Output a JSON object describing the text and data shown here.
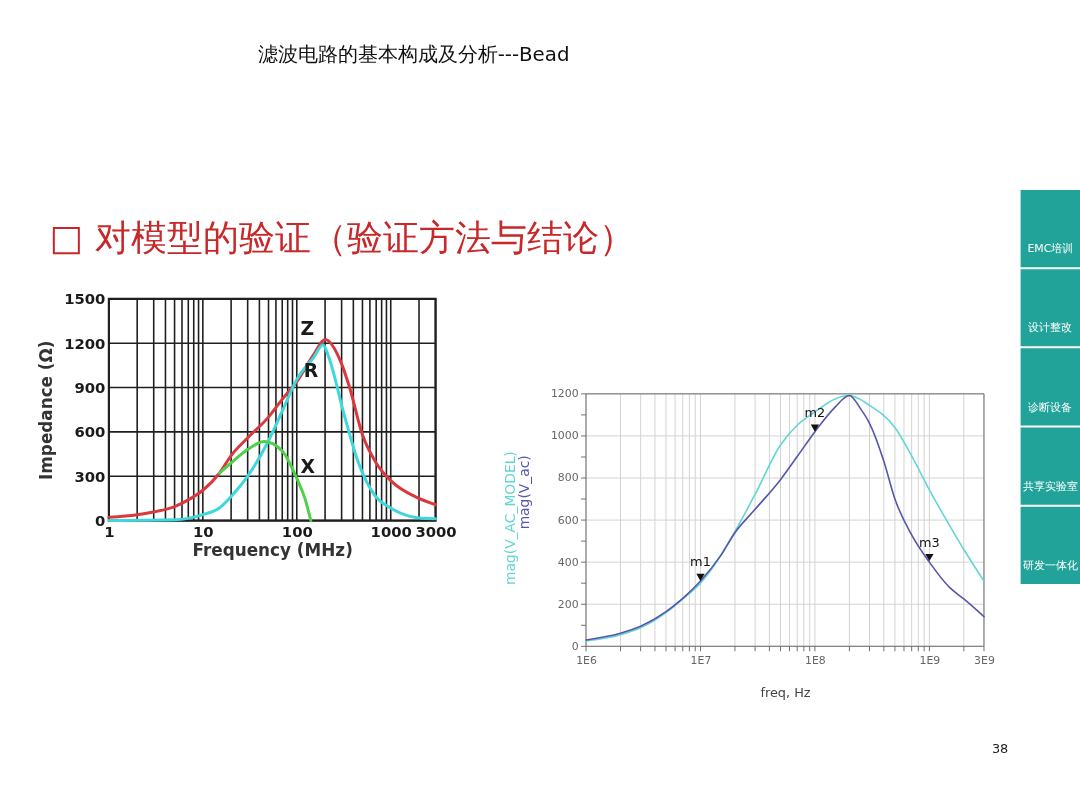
{
  "chart_data": [
    {
      "type": "line",
      "title": "滤波电路的基本构成及分析---Bead",
      "subtitle": "□ 对模型的验证（验证方法与结论）",
      "xlabel": "Frequency (MHz)",
      "ylabel": "Impedance (Ω)",
      "log": "x",
      "grid": true,
      "xlim": [
        1,
        3000
      ],
      "xticks": [
        1,
        {
          "value": 2,
          "label": null
        },
        {
          "value": 3,
          "label": null
        },
        {
          "value": 4,
          "label": null
        },
        {
          "value": 5,
          "label": null
        },
        {
          "value": 6,
          "label": null
        },
        {
          "value": 7,
          "label": null
        },
        {
          "value": 8,
          "label": null
        },
        {
          "value": 9,
          "label": null
        },
        10,
        {
          "value": 20,
          "label": null
        },
        {
          "value": 30,
          "label": null
        },
        {
          "value": 40,
          "label": null
        },
        {
          "value": 50,
          "label": null
        },
        {
          "value": 60,
          "label": null
        },
        {
          "value": 70,
          "label": null
        },
        {
          "value": 80,
          "label": null
        },
        {
          "value": 90,
          "label": null
        },
        100,
        {
          "value": 200,
          "label": null
        },
        {
          "value": 300,
          "label": null
        },
        {
          "value": 400,
          "label": null
        },
        {
          "value": 500,
          "label": null
        },
        {
          "value": 600,
          "label": null
        },
        {
          "value": 700,
          "label": null
        },
        {
          "value": 800,
          "label": null
        },
        {
          "value": 900,
          "label": null
        },
        1000,
        {
          "value": 2000,
          "label": null
        },
        3000
      ],
      "ylim": [
        0,
        1500
      ],
      "yticks": [
        0,
        300,
        600,
        900,
        1200,
        1500
      ],
      "series": [
        {
          "name": "Z",
          "color": "#d9383c",
          "x": [
            1,
            2,
            3,
            5,
            7,
            10,
            15,
            20,
            30,
            50,
            70,
            100,
            150,
            200,
            300,
            365,
            500,
            700,
            1000,
            2000,
            3000
          ],
          "values": [
            22,
            40,
            58,
            95,
            140,
            205,
            320,
            440,
            560,
            700,
            820,
            940,
            1120,
            1225,
            1060,
            900,
            580,
            390,
            270,
            150,
            107
          ]
        },
        {
          "name": "R",
          "color": "#3ed8dc",
          "x": [
            1,
            5,
            10,
            15,
            20,
            30,
            50,
            70,
            100,
            150,
            190,
            215,
            320,
            450,
            670,
            1000,
            2000,
            3000
          ],
          "values": [
            0,
            5,
            40,
            85,
            163,
            300,
            540,
            740,
            955,
            1100,
            1190,
            1120,
            713,
            396,
            174,
            85,
            18,
            13
          ]
        },
        {
          "name": "X",
          "color": "#4fd04a",
          "x": [
            15,
            20,
            30,
            45,
            70,
            100,
            122,
            141
          ],
          "values": [
            320,
            390,
            480,
            535,
            470,
            285,
            150,
            0
          ]
        }
      ]
    },
    {
      "type": "line",
      "xlabel": "freq, Hz",
      "log": "x",
      "grid": true,
      "xlim": [
        1000000,
        3000000000
      ],
      "xticks": [
        {
          "value": 1000000,
          "label": "1E6"
        },
        {
          "value": 2000000,
          "label": null
        },
        {
          "value": 3000000,
          "label": null
        },
        {
          "value": 4000000,
          "label": null
        },
        {
          "value": 5000000,
          "label": null
        },
        {
          "value": 6000000,
          "label": null
        },
        {
          "value": 7000000,
          "label": null
        },
        {
          "value": 8000000,
          "label": null
        },
        {
          "value": 9000000,
          "label": null
        },
        {
          "value": 10000000,
          "label": "1E7"
        },
        {
          "value": 20000000,
          "label": null
        },
        {
          "value": 30000000,
          "label": null
        },
        {
          "value": 40000000,
          "label": null
        },
        {
          "value": 50000000,
          "label": null
        },
        {
          "value": 60000000,
          "label": null
        },
        {
          "value": 70000000,
          "label": null
        },
        {
          "value": 80000000,
          "label": null
        },
        {
          "value": 90000000,
          "label": null
        },
        {
          "value": 100000000,
          "label": "1E8"
        },
        {
          "value": 200000000,
          "label": null
        },
        {
          "value": 300000000,
          "label": null
        },
        {
          "value": 400000000,
          "label": null
        },
        {
          "value": 500000000,
          "label": null
        },
        {
          "value": 600000000,
          "label": null
        },
        {
          "value": 700000000,
          "label": null
        },
        {
          "value": 800000000,
          "label": null
        },
        {
          "value": 900000000,
          "label": null
        },
        {
          "value": 1000000000,
          "label": "1E9"
        },
        {
          "value": 2000000000,
          "label": null
        },
        {
          "value": 3000000000,
          "label": "3E9"
        }
      ],
      "ylim": [
        0,
        1200
      ],
      "yticks": [
        0,
        {
          "value": 100,
          "label": null
        },
        200,
        {
          "value": 300,
          "label": null
        },
        400,
        {
          "value": 500,
          "label": null
        },
        600,
        {
          "value": 700,
          "label": null
        },
        800,
        {
          "value": 900,
          "label": null
        },
        1000,
        {
          "value": 1100,
          "label": null
        },
        1200
      ],
      "series": [
        {
          "name": "mag(V_AC_MODEL)",
          "color": "#62d6d2",
          "x": [
            1000000,
            2000000,
            3000000,
            5000000,
            7000000,
            10000000,
            15000000,
            20000000,
            30000000,
            50000000,
            70000000,
            100000000,
            150000000,
            200000000,
            300000000,
            500000000,
            700000000,
            1000000000,
            1500000000,
            2000000000,
            3000000000
          ],
          "values": [
            25,
            55,
            88,
            160,
            225,
            300,
            430,
            545,
            722,
            957,
            1051,
            1114,
            1176,
            1192,
            1145,
            1040,
            905,
            744,
            575,
            460,
            310
          ]
        },
        {
          "name": "mag(V_ac)",
          "color": "#5555aa",
          "x": [
            1000000,
            2000000,
            3000000,
            5000000,
            7000000,
            10000000,
            15000000,
            20000000,
            30000000,
            50000000,
            70000000,
            100000000,
            150000000,
            200000000,
            250000000,
            300000000,
            400000000,
            500000000,
            700000000,
            1000000000,
            1500000000,
            2000000000,
            3000000000
          ],
          "values": [
            30,
            62,
            95,
            165,
            228,
            310,
            431,
            540,
            651,
            792,
            902,
            1020,
            1137,
            1192,
            1130,
            1060,
            880,
            700,
            530,
            400,
            280,
            225,
            141
          ]
        }
      ],
      "annotations": [
        {
          "text": "m1",
          "x": 10000000,
          "y": 328
        },
        {
          "text": "m2",
          "x": 100000000,
          "y": 1037
        },
        {
          "text": "m3",
          "x": 1000000000,
          "y": 422
        },
        "38"
      ]
    },
    {
      "type": "other",
      "annotations": [
        "EMC培训",
        "设计整改",
        "诊断设备",
        "共享实验室",
        "研发一体化"
      ]
    }
  ]
}
